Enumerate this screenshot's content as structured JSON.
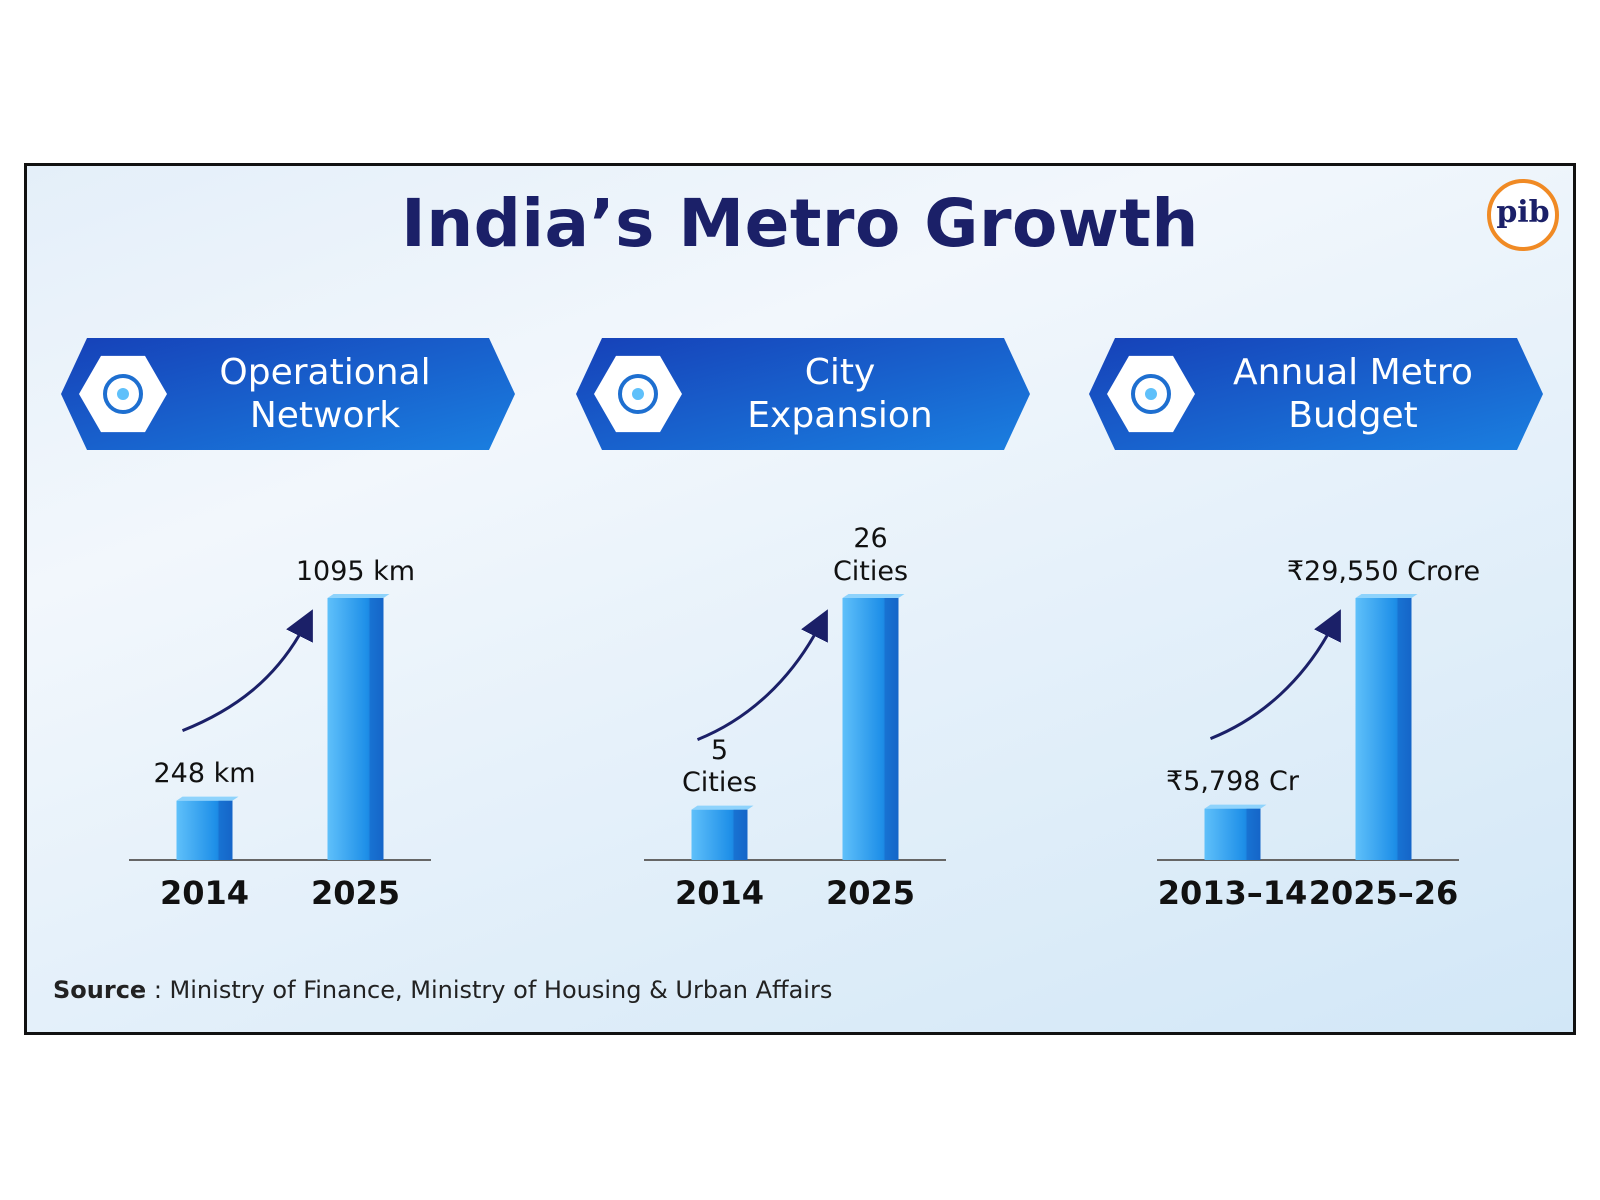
{
  "title": "India’s Metro Growth",
  "logo": "pib",
  "chart_data": [
    {
      "type": "bar",
      "title": "Operational Network",
      "categories": [
        "2014",
        "2025"
      ],
      "values": [
        248,
        1095
      ],
      "value_labels": [
        "248 km",
        "1095 km"
      ],
      "color": "#1e8fe8"
    },
    {
      "type": "bar",
      "title": "City Expansion",
      "categories": [
        "2014",
        "2025"
      ],
      "values": [
        5,
        26
      ],
      "value_labels": [
        "5 Cities",
        "26 Cities"
      ],
      "color": "#1e8fe8"
    },
    {
      "type": "bar",
      "title": "Annual Metro Budget",
      "categories": [
        "2013–14",
        "2025–26"
      ],
      "values": [
        5798,
        29550
      ],
      "value_labels": [
        "₹5,798 Cr",
        "₹29,550 Crore"
      ],
      "color": "#1e8fe8"
    }
  ],
  "source_label": "Source",
  "source": ": Ministry of Finance, Ministry of Housing & Urban Affairs"
}
